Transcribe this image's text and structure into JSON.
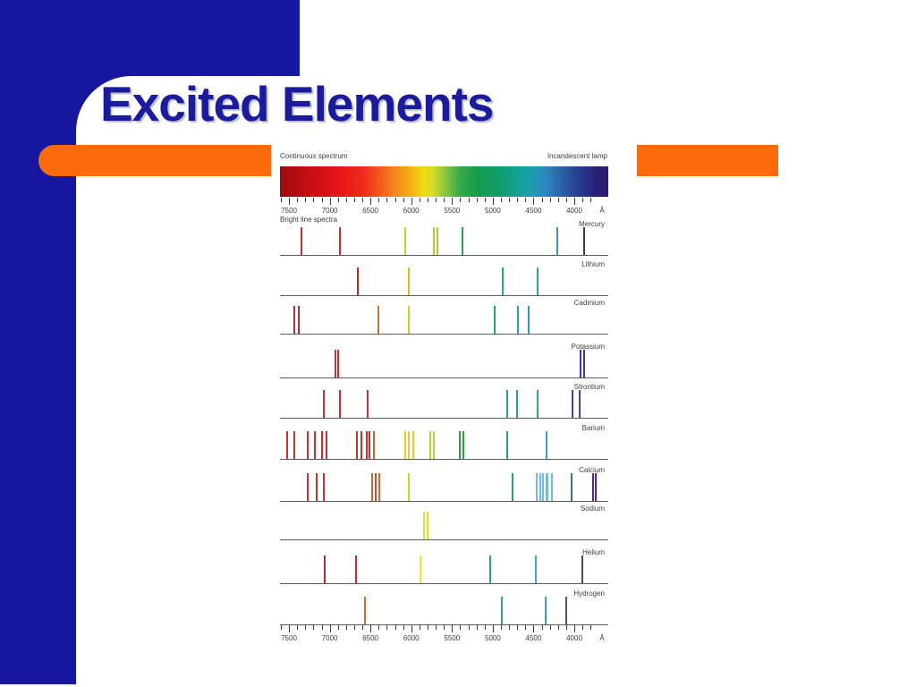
{
  "slide": {
    "title": "Excited Elements",
    "colors": {
      "background_blue": "#16169f",
      "accent_orange": "#fb6b0b",
      "title_blue": "#1b1b9e"
    }
  },
  "chart_data": {
    "type": "heatmap",
    "description": "Continuous emission spectrum of an incandescent lamp above bright-line emission spectra of ten excited elements, plotted against wavelength in angstroms (7500 on the left decreasing to 4000 on the right)",
    "title_left": "Continuous spectrum",
    "title_right": "Incandescent lamp",
    "subtitle": "Bright line spectra",
    "axis": {
      "unit": "Å",
      "max": 7500,
      "min": 4000,
      "major_tick_step": 500,
      "minor_tick_step": 100,
      "tick_labels": [
        "7500",
        "7000",
        "6500",
        "6000",
        "5500",
        "5000",
        "4500",
        "4000"
      ],
      "direction": "wavelength decreases left to right",
      "shown_on": "top and bottom"
    },
    "continuous_gradient": [
      {
        "pos": 0,
        "color": "#9c0c12"
      },
      {
        "pos": 8,
        "color": "#c30e14"
      },
      {
        "pos": 18,
        "color": "#e5151b"
      },
      {
        "pos": 25,
        "color": "#ee2a18"
      },
      {
        "pos": 30,
        "color": "#f2571b"
      },
      {
        "pos": 35,
        "color": "#f4871d"
      },
      {
        "pos": 40,
        "color": "#f5b214"
      },
      {
        "pos": 44,
        "color": "#efdd15"
      },
      {
        "pos": 47,
        "color": "#cfd92b"
      },
      {
        "pos": 51,
        "color": "#7cc243"
      },
      {
        "pos": 55,
        "color": "#35a948"
      },
      {
        "pos": 60,
        "color": "#189c4b"
      },
      {
        "pos": 66,
        "color": "#119c67"
      },
      {
        "pos": 71,
        "color": "#13a089"
      },
      {
        "pos": 76,
        "color": "#1d9fae"
      },
      {
        "pos": 81,
        "color": "#2c87c0"
      },
      {
        "pos": 86,
        "color": "#2c5fa8"
      },
      {
        "pos": 91,
        "color": "#283c93"
      },
      {
        "pos": 96,
        "color": "#272379"
      },
      {
        "pos": 100,
        "color": "#2c1d6d"
      }
    ],
    "elements": [
      {
        "name": "Mercury",
        "lines": [
          [
            7350,
            "#c62f2f"
          ],
          [
            6880,
            "#c62f2f"
          ],
          [
            6075,
            "#cdcf2e"
          ],
          [
            5725,
            "#b5c931"
          ],
          [
            5680,
            "#b5c931"
          ],
          [
            5370,
            "#2d9e4b"
          ],
          [
            4205,
            "#3f8fc1"
          ],
          [
            3880,
            "#323f4c"
          ]
        ]
      },
      {
        "name": "Lithium",
        "lines": [
          [
            6655,
            "#b02e2e"
          ],
          [
            6030,
            "#e0b52a"
          ],
          [
            4880,
            "#2aa3a3"
          ],
          [
            4450,
            "#2aa3a8"
          ]
        ]
      },
      {
        "name": "Cadmium",
        "lines": [
          [
            7440,
            "#ad2f3b"
          ],
          [
            7385,
            "#ad2f3b"
          ],
          [
            6405,
            "#c8733c"
          ],
          [
            6030,
            "#dcc433"
          ],
          [
            4975,
            "#26a07c"
          ],
          [
            4690,
            "#2aa3a8"
          ],
          [
            4560,
            "#2aa3a8"
          ]
        ]
      },
      {
        "name": "Potassium",
        "lines": [
          [
            6935,
            "#c43434"
          ],
          [
            6895,
            "#c43434"
          ],
          [
            3920,
            "#3c3c9e"
          ],
          [
            3885,
            "#3c3c9e"
          ]
        ]
      },
      {
        "name": "Strontium",
        "lines": [
          [
            7075,
            "#c03434"
          ],
          [
            6875,
            "#c03434"
          ],
          [
            6535,
            "#c03434"
          ],
          [
            4825,
            "#2aa396"
          ],
          [
            4705,
            "#2aa396"
          ],
          [
            4450,
            "#2aa3a8"
          ],
          [
            4020,
            "#3c4a94"
          ],
          [
            3930,
            "#3c4a94"
          ]
        ]
      },
      {
        "name": "Barium",
        "lines": [
          [
            7520,
            "#bf3434"
          ],
          [
            7435,
            "#bf3434"
          ],
          [
            7270,
            "#bf3434"
          ],
          [
            7180,
            "#bf3434"
          ],
          [
            7100,
            "#bf3434"
          ],
          [
            7045,
            "#bf3434"
          ],
          [
            6665,
            "#bf3434"
          ],
          [
            6615,
            "#bf3434"
          ],
          [
            6550,
            "#bf3434"
          ],
          [
            6510,
            "#bf3434"
          ],
          [
            6455,
            "#b5683c"
          ],
          [
            6075,
            "#ddd034"
          ],
          [
            6030,
            "#ddd034"
          ],
          [
            5975,
            "#ddd034"
          ],
          [
            5770,
            "#b9cc3a"
          ],
          [
            5720,
            "#b9cc3a"
          ],
          [
            5410,
            "#2f9e49"
          ],
          [
            5365,
            "#2f9e49"
          ],
          [
            4820,
            "#26a287"
          ],
          [
            4340,
            "#3f9fd1"
          ]
        ]
      },
      {
        "name": "Calcium",
        "lines": [
          [
            7265,
            "#c03434"
          ],
          [
            7155,
            "#c03434"
          ],
          [
            7075,
            "#c03434"
          ],
          [
            6480,
            "#cf6b2f"
          ],
          [
            6435,
            "#b5563a"
          ],
          [
            6390,
            "#cf6b2f"
          ],
          [
            6030,
            "#ddc934"
          ],
          [
            4755,
            "#26a28c"
          ],
          [
            4460,
            "#72bcd9"
          ],
          [
            4415,
            "#72bcd9"
          ],
          [
            4385,
            "#72bcd9"
          ],
          [
            4345,
            "#72bcd9"
          ],
          [
            4325,
            "#72bcd9"
          ],
          [
            4270,
            "#72bcd9"
          ],
          [
            4030,
            "#3f6ba4"
          ],
          [
            3775,
            "#55258f"
          ],
          [
            3740,
            "#55258f"
          ]
        ]
      },
      {
        "name": "Sodium",
        "lines": [
          [
            5845,
            "#e3d92f"
          ],
          [
            5800,
            "#e3d92f"
          ]
        ]
      },
      {
        "name": "Helium",
        "lines": [
          [
            7065,
            "#ae2f2f"
          ],
          [
            6680,
            "#c23030"
          ],
          [
            5885,
            "#eee72a"
          ],
          [
            5030,
            "#26a287"
          ],
          [
            4470,
            "#49a3cf"
          ],
          [
            3900,
            "#3e4a6e"
          ]
        ]
      },
      {
        "name": "Hydrogen",
        "lines": [
          [
            6565,
            "#cf6f2a"
          ],
          [
            4885,
            "#2aa396"
          ],
          [
            4355,
            "#4493c9"
          ],
          [
            4100,
            "#40596e"
          ]
        ]
      }
    ]
  }
}
